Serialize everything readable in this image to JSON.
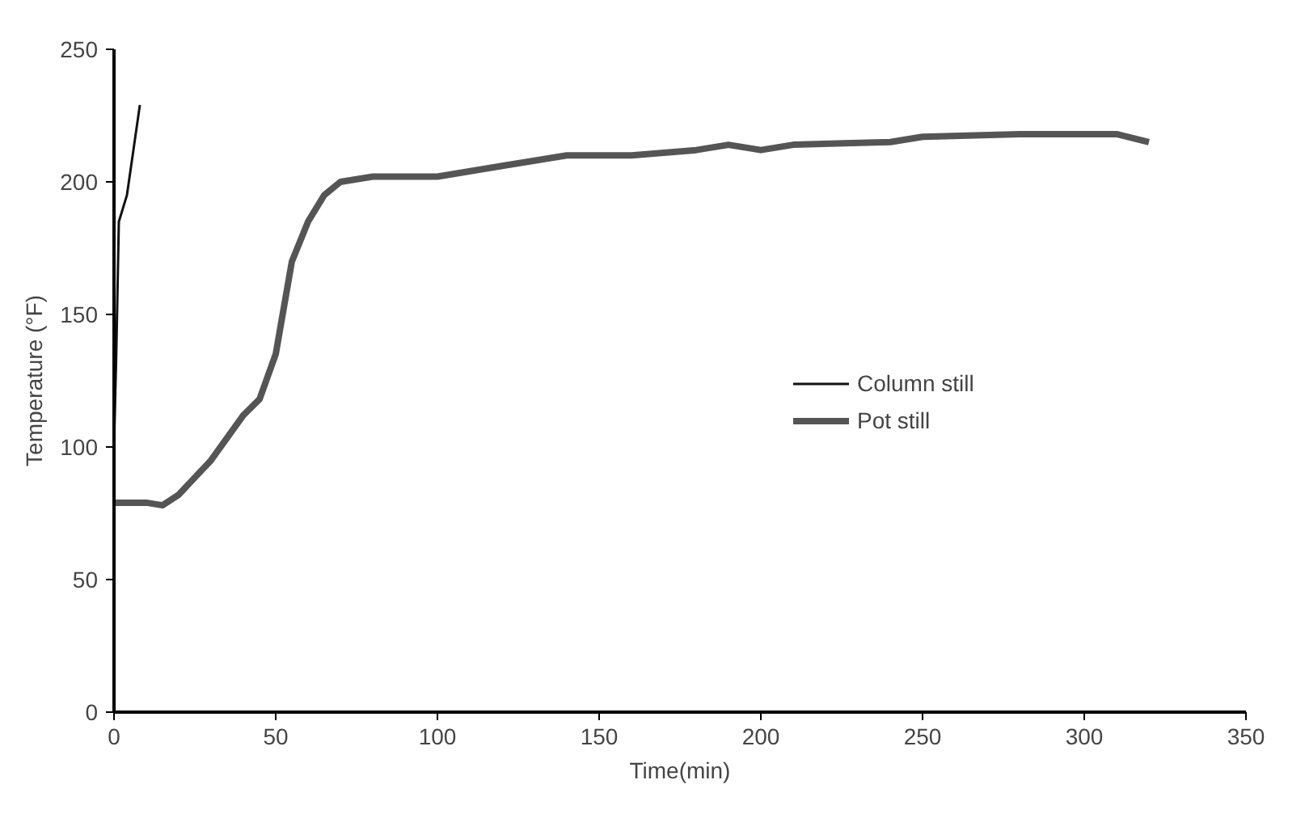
{
  "chart_data": {
    "type": "line",
    "xlabel": "Time(min)",
    "ylabel": "Temperature (°F)",
    "xlim": [
      0,
      350
    ],
    "xticks": [
      0,
      50,
      100,
      150,
      200,
      250,
      300,
      350
    ],
    "ylim": [
      0,
      250
    ],
    "yticks": [
      0,
      50,
      100,
      150,
      200,
      250
    ],
    "grid": false,
    "legend": "right",
    "marker": "none",
    "series": [
      {
        "name": "Column still",
        "color": "#111111",
        "x": [
          0,
          0.7,
          1.5,
          4,
          8
        ],
        "values": [
          100,
          135,
          185,
          195,
          229
        ]
      },
      {
        "name": "Pot still",
        "color": "#555555",
        "x": [
          0,
          10,
          15,
          20,
          30,
          40,
          45,
          50,
          55,
          60,
          65,
          70,
          80,
          100,
          120,
          140,
          160,
          180,
          190,
          200,
          210,
          240,
          250,
          280,
          300,
          310,
          320
        ],
        "values": [
          79,
          79,
          78,
          82,
          95,
          112,
          118,
          135,
          170,
          185,
          195,
          200,
          202,
          202,
          206,
          210,
          210,
          212,
          214,
          212,
          214,
          215,
          217,
          218,
          218,
          218,
          215
        ]
      }
    ]
  }
}
